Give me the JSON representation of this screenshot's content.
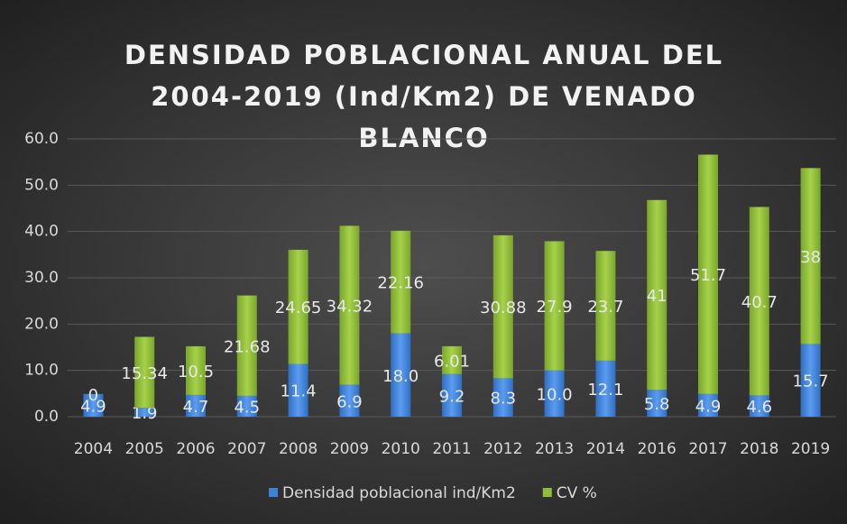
{
  "chart_data": {
    "type": "stacked_bar",
    "title": "DENSIDAD POBLACIONAL ANUAL DEL 2004-2019 (Ind/Km2) DE VENADO BLANCO",
    "categories": [
      "2004",
      "2005",
      "2006",
      "2007",
      "2008",
      "2009",
      "2010",
      "2011",
      "2012",
      "2013",
      "2014",
      "2016",
      "2017",
      "2018",
      "2019"
    ],
    "series": [
      {
        "name": "Densidad poblacional ind/Km2",
        "color": "#3d82d8",
        "values": [
          4.9,
          1.9,
          4.7,
          4.5,
          11.4,
          6.9,
          18.0,
          9.2,
          8.3,
          10.0,
          12.1,
          5.8,
          4.9,
          4.6,
          15.7
        ],
        "value_labels": [
          "4.9",
          "1.9",
          "4.7",
          "4.5",
          "11.4",
          "6.9",
          "18.0",
          "9.2",
          "8.3",
          "10.0",
          "12.1",
          "5.8",
          "4.9",
          "4.6",
          "15.7"
        ]
      },
      {
        "name": "CV %",
        "color": "#8fbc3a",
        "values": [
          0,
          15.34,
          10.5,
          21.68,
          24.65,
          34.32,
          22.16,
          6.01,
          30.88,
          27.9,
          23.7,
          41,
          51.7,
          40.7,
          38
        ]
      }
    ],
    "ylim": [
      0,
      60
    ],
    "yticks": [
      {
        "value": 0,
        "label": "0.0"
      },
      {
        "value": 10,
        "label": "10.0"
      },
      {
        "value": 20,
        "label": "20.0"
      },
      {
        "value": 30,
        "label": "30.0"
      },
      {
        "value": 40,
        "label": "40.0"
      },
      {
        "value": 50,
        "label": "50.0"
      },
      {
        "value": 60,
        "label": "60.0"
      }
    ],
    "grid": true,
    "legend": "bottom"
  }
}
